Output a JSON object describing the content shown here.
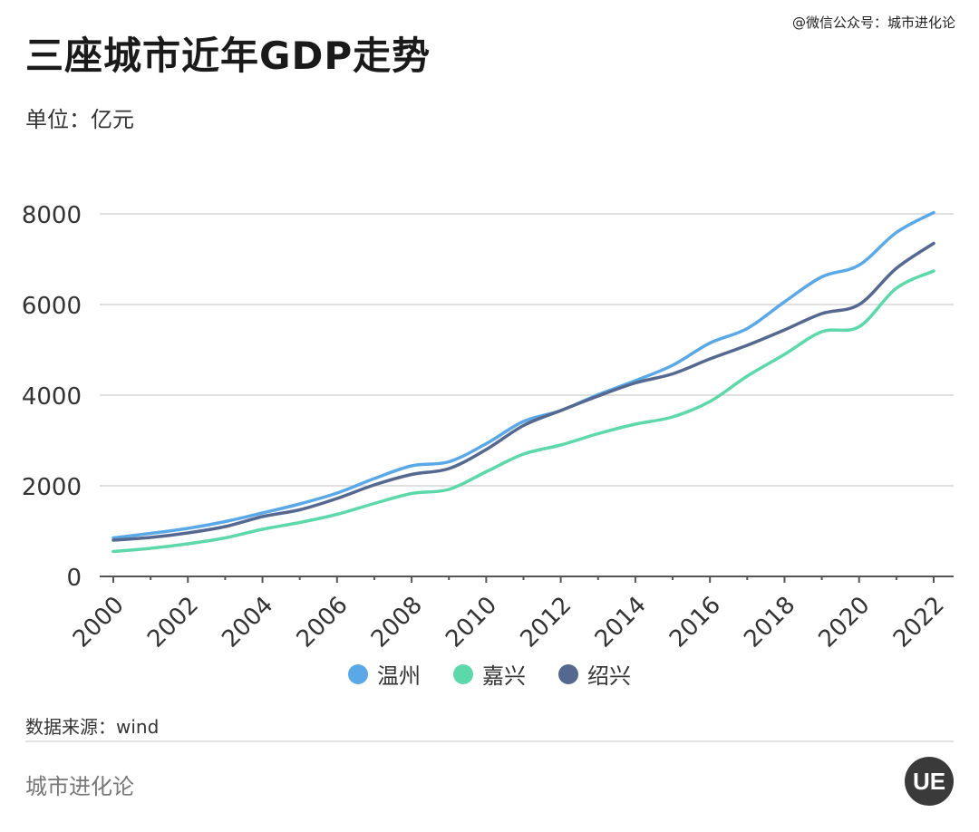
{
  "header": {
    "title": "三座城市近年GDP走势",
    "source_top": "@微信公众号：城市进化论",
    "unit": "单位：亿元"
  },
  "footer": {
    "data_source": "数据来源：wind",
    "brand": "城市进化论",
    "logo_text": "UE"
  },
  "colors": {
    "wenzhou": "#5aa9e6",
    "jiaxing": "#5dd8ab",
    "shaoxing": "#55688f",
    "grid": "#e0e0e0",
    "axis": "#555555"
  },
  "chart_data": {
    "type": "line",
    "title": "三座城市近年GDP走势",
    "ylabel": "单位：亿元",
    "xlabel": "",
    "ylim": [
      0,
      8000
    ],
    "yticks": [
      0,
      2000,
      4000,
      6000,
      8000
    ],
    "x": [
      2000,
      2001,
      2002,
      2003,
      2004,
      2005,
      2006,
      2007,
      2008,
      2009,
      2010,
      2011,
      2012,
      2013,
      2014,
      2015,
      2016,
      2017,
      2018,
      2019,
      2020,
      2021,
      2022
    ],
    "xtick_labels": [
      "2000",
      "2002",
      "2004",
      "2006",
      "2008",
      "2010",
      "2012",
      "2014",
      "2016",
      "2018",
      "2020",
      "2022"
    ],
    "legend_position": "bottom",
    "grid": true,
    "series": [
      {
        "name": "温州",
        "color": "#5aa9e6",
        "values": [
          850,
          950,
          1060,
          1210,
          1400,
          1600,
          1840,
          2160,
          2440,
          2530,
          2930,
          3420,
          3660,
          4010,
          4320,
          4660,
          5150,
          5470,
          6060,
          6610,
          6870,
          7590,
          8030
        ]
      },
      {
        "name": "嘉兴",
        "color": "#5dd8ab",
        "values": [
          550,
          620,
          720,
          850,
          1040,
          1190,
          1370,
          1610,
          1830,
          1920,
          2310,
          2700,
          2900,
          3150,
          3360,
          3520,
          3860,
          4420,
          4900,
          5400,
          5510,
          6360,
          6740
        ]
      },
      {
        "name": "绍兴",
        "color": "#55688f",
        "values": [
          800,
          860,
          960,
          1100,
          1320,
          1470,
          1720,
          2020,
          2250,
          2380,
          2800,
          3330,
          3660,
          3980,
          4270,
          4470,
          4800,
          5100,
          5440,
          5800,
          6000,
          6800,
          7350
        ]
      }
    ]
  }
}
